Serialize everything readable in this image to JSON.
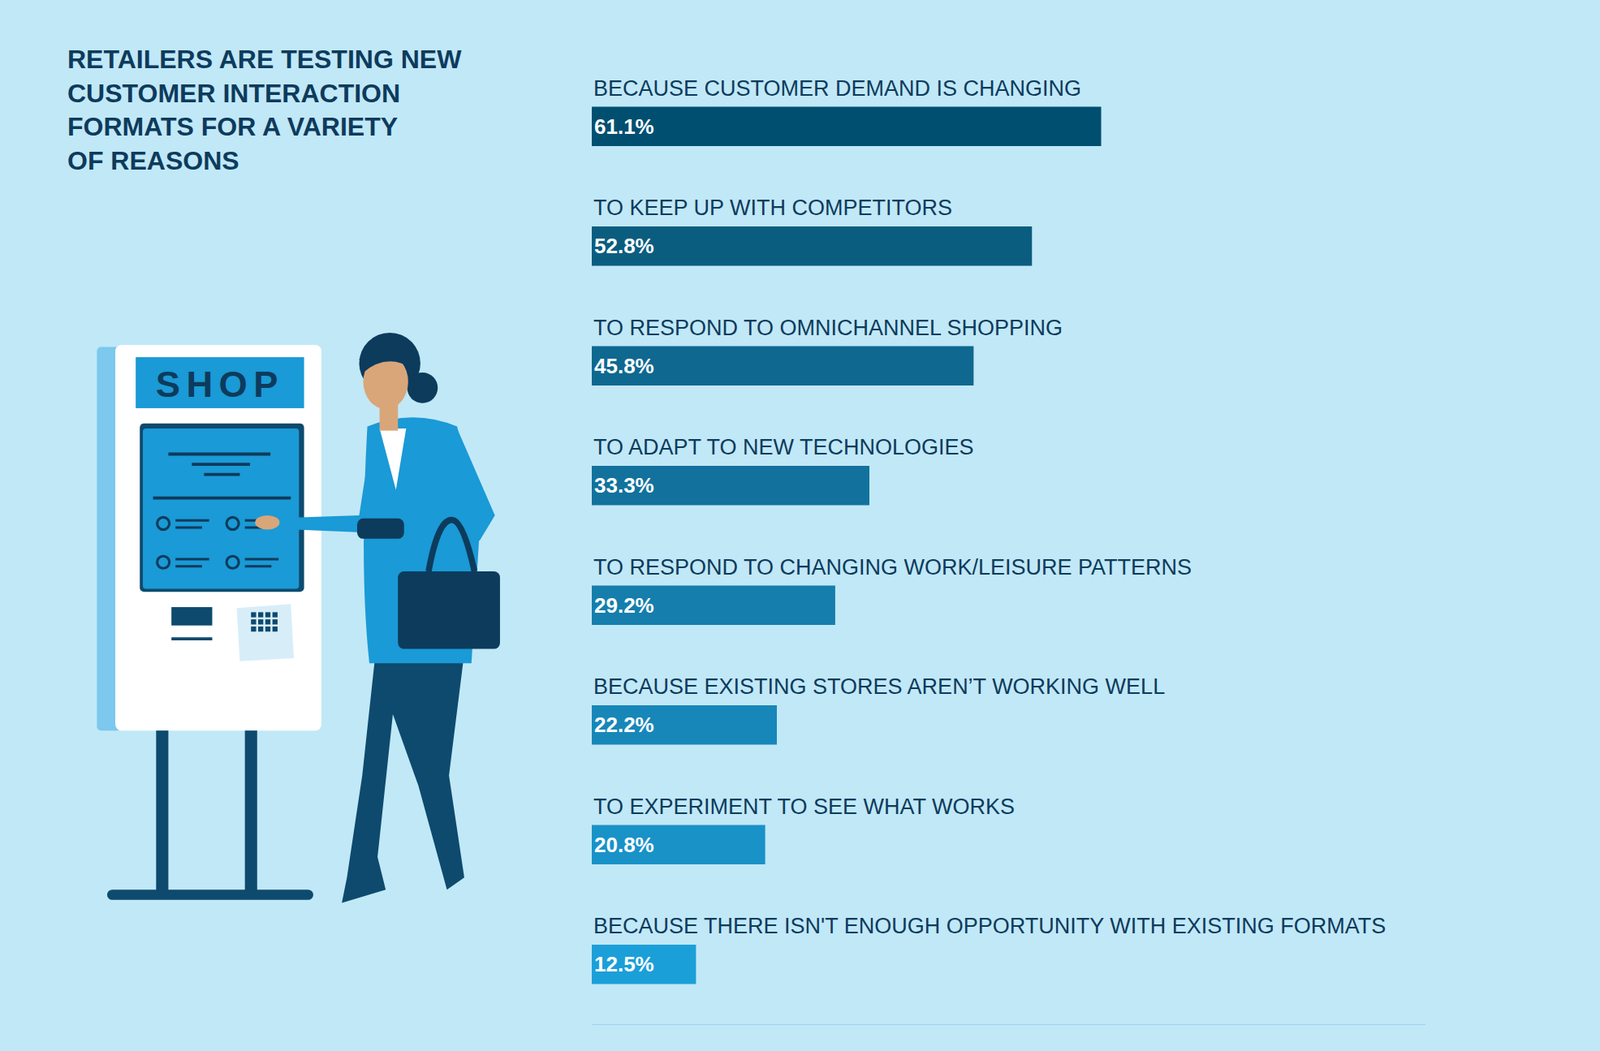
{
  "chart_data": {
    "type": "bar",
    "orientation": "horizontal",
    "title": "RETAILERS ARE TESTING NEW\nCUSTOMER INTERACTION\nFORMATS FOR A VARIETY\nOF REASONS",
    "categories": [
      "BECAUSE CUSTOMER DEMAND IS CHANGING",
      "TO KEEP UP WITH COMPETITORS",
      "TO RESPOND TO OMNICHANNEL SHOPPING",
      "TO ADAPT TO NEW TECHNOLOGIES",
      "TO RESPOND TO CHANGING WORK/LEISURE PATTERNS",
      "BECAUSE EXISTING STORES AREN’T WORKING WELL",
      "TO EXPERIMENT TO SEE WHAT WORKS",
      "BECAUSE THERE ISN'T ENOUGH OPPORTUNITY WITH EXISTING FORMATS"
    ],
    "values": [
      61.1,
      52.8,
      45.8,
      33.3,
      29.2,
      22.2,
      20.8,
      12.5
    ],
    "value_labels": [
      "61.1%",
      "52.8%",
      "45.8%",
      "33.3%",
      "29.2%",
      "22.2%",
      "20.8%",
      "12.5%"
    ],
    "colors": [
      "#004f71",
      "#0b5d80",
      "#0f6890",
      "#12729d",
      "#157eac",
      "#1787b9",
      "#1992c8",
      "#1b9fd8"
    ],
    "data_labels": true,
    "tick_labels": false,
    "grid": false,
    "xlim": [
      0,
      100
    ],
    "annotations": [
      "SHOP"
    ]
  }
}
